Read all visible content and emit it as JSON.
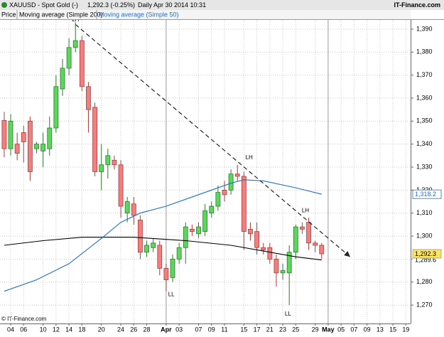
{
  "header": {
    "symbol": "XAUUSD - Spot Gold (-)",
    "quote": "1,292.3 (-0.25%)",
    "period": "Daily  Apr 30 2014 10:31",
    "brand": "IT-Finance.com"
  },
  "legend_row": [
    "Price",
    "Moving average (Simple 200)",
    "Moving average (Simple 50)"
  ],
  "footer": "© IT-Finance.com",
  "chart_data": {
    "type": "candlestick",
    "categories": [
      null,
      "04",
      null,
      "06",
      null,
      null,
      "10",
      null,
      "12",
      null,
      "14",
      null,
      "18",
      null,
      null,
      "20",
      null,
      null,
      "24",
      null,
      "26",
      null,
      "28",
      null,
      null,
      "Apr",
      null,
      "03",
      null,
      null,
      "07",
      null,
      "09",
      null,
      "11",
      null,
      null,
      "15",
      null,
      "17",
      null,
      "21",
      null,
      "23",
      null,
      "25",
      null,
      null,
      "29",
      null,
      "May",
      null,
      "05",
      null,
      "07",
      null,
      "09",
      null,
      "13",
      null,
      "15",
      null,
      "19"
    ],
    "month_labels": [
      "Apr",
      "May"
    ],
    "open": [
      1350.3,
      1338,
      1340,
      1345,
      1350,
      1338,
      1337,
      1338,
      1347,
      1364,
      1373,
      1382,
      1385,
      1365,
      1356,
      1328,
      1331,
      1333,
      1331,
      1310,
      1314,
      1307,
      1293,
      1295,
      1296,
      1286,
      1282,
      1290,
      1295,
      1303,
      1301,
      1302,
      1310,
      1313,
      1320,
      1320,
      1327,
      1326,
      1303,
      1302,
      1295,
      1295,
      1290,
      1284,
      1284,
      1293,
      1304,
      1306,
      1297,
      1296,
      null,
      null,
      null,
      null,
      null,
      null,
      null,
      null,
      null,
      null,
      null,
      null,
      null
    ],
    "high": [
      1354,
      1353,
      1345,
      1348,
      1352,
      1341,
      1345,
      1352,
      1370,
      1377,
      1386,
      1393,
      1387,
      1367,
      1358,
      1340,
      1338,
      1335,
      1333,
      1317,
      1317,
      1309,
      1298,
      1299,
      1298,
      1288,
      1292,
      1297,
      1306,
      1305,
      1306,
      1314,
      1315,
      1322,
      1324,
      1329,
      1331,
      1328,
      1306,
      1306,
      1297,
      1297,
      1292,
      1288,
      1296,
      1305,
      1306,
      1308,
      1298,
      1297,
      null,
      null,
      null,
      null,
      null,
      null,
      null,
      null,
      null,
      null,
      null,
      null,
      null
    ],
    "low": [
      1334.3,
      1335,
      1333,
      1332,
      1324,
      1336,
      1330,
      1335,
      1345,
      1361,
      1370,
      1380,
      1363,
      1345,
      1326,
      1320,
      1325,
      1329,
      1308,
      1306,
      1305,
      1290,
      1291,
      1293,
      1283,
      1276,
      1280,
      1288,
      1288,
      1300,
      1299,
      1300,
      1308,
      1311,
      1315,
      1318,
      1324,
      1294,
      1298,
      1292,
      1292,
      1288,
      1278,
      1281,
      1270,
      1290,
      1301,
      1294,
      1293,
      1290,
      null,
      null,
      null,
      null,
      null,
      null,
      null,
      null,
      null,
      null,
      null,
      null,
      null
    ],
    "close": [
      1338,
      1350,
      1336,
      1341,
      1328,
      1340,
      1340,
      1347,
      1365,
      1373,
      1382,
      1385,
      1365,
      1355,
      1328,
      1331,
      1335,
      1331,
      1313,
      1315,
      1309,
      1293,
      1296,
      1297,
      1286,
      1281,
      1290,
      1295,
      1304,
      1302,
      1304,
      1311,
      1313,
      1319,
      1318,
      1327,
      1326,
      1302,
      1301,
      1295,
      1294,
      1290,
      1284,
      1285,
      1293,
      1304,
      1303,
      1297,
      1296,
      1292.3,
      null,
      null,
      null,
      null,
      null,
      null,
      null,
      null,
      null,
      null,
      null,
      null,
      null
    ],
    "up_color": "#5cd65c",
    "up_edge": "#2d7a2d",
    "down_color": "#f08080",
    "down_edge": "#b03a3a",
    "lines": [
      {
        "name": "Moving average (Simple 200)",
        "color": "#000000",
        "x": [
          0,
          6,
          12,
          20,
          28,
          35,
          40,
          45,
          49
        ],
        "values": [
          1296,
          1298,
          1299.5,
          1299.5,
          1298,
          1296,
          1293.5,
          1291,
          1289.6
        ],
        "last": {
          "value": 1289.6,
          "label": "1,289.6"
        }
      },
      {
        "name": "Moving average (Simple 50)",
        "color": "#1f6fd0",
        "x": [
          0,
          5,
          10,
          15,
          18,
          21,
          25,
          30,
          35,
          37,
          40,
          45,
          49
        ],
        "values": [
          1276,
          1281,
          1288,
          1299,
          1306,
          1310,
          1313,
          1318,
          1323,
          1324.5,
          1324,
          1321,
          1318.2
        ],
        "last": {
          "value": 1318.2,
          "label": "1,318.2"
        }
      }
    ],
    "price_tag": {
      "value": 1292.3,
      "label": "1,292.3"
    },
    "trendline": {
      "x": [
        11,
        53.4
      ],
      "y": [
        1392,
        1291
      ]
    },
    "annotations": [
      {
        "text": "LH",
        "x": 11,
        "y": 1394
      },
      {
        "text": "LH",
        "x": 37.8,
        "y": 1334
      },
      {
        "text": "LH",
        "x": 46.5,
        "y": 1311
      },
      {
        "text": "LL",
        "x": 25.8,
        "y": 1274.5
      },
      {
        "text": "LL",
        "x": 43.8,
        "y": 1266
      }
    ],
    "ylim": [
      1262,
      1394
    ],
    "yticks": [
      {
        "value": 1270,
        "label": "1,270"
      },
      {
        "value": 1280,
        "label": "1,280"
      },
      {
        "value": 1290,
        "label": "1,290"
      },
      {
        "value": 1300,
        "label": "1,300"
      },
      {
        "value": 1310,
        "label": "1,310"
      },
      {
        "value": 1320,
        "label": "1,320"
      },
      {
        "value": 1330,
        "label": "1,330"
      },
      {
        "value": 1340,
        "label": "1,340"
      },
      {
        "value": 1350,
        "label": "1,350"
      },
      {
        "value": 1360,
        "label": "1,360"
      },
      {
        "value": 1370,
        "label": "1,370"
      },
      {
        "value": 1380,
        "label": "1,380"
      },
      {
        "value": 1390,
        "label": "1,390"
      }
    ],
    "grid": true
  }
}
